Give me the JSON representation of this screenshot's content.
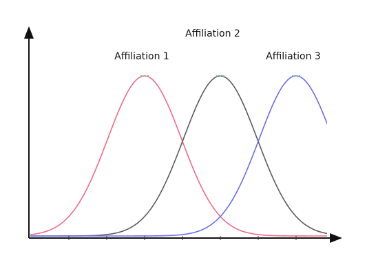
{
  "labels": [
    "Affiliation 1",
    "Affiliation 2",
    "Affiliation 3"
  ]
}
